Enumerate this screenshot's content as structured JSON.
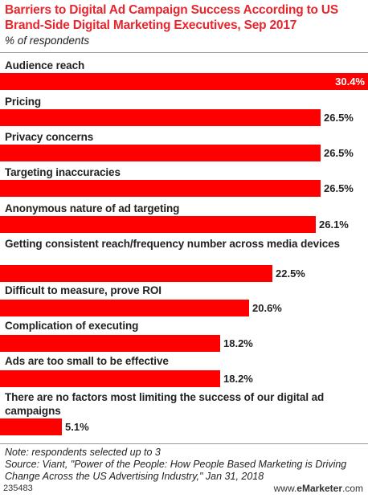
{
  "chart_data": {
    "type": "bar",
    "orientation": "horizontal",
    "title": "Barriers to Digital Ad Campaign Success According to US Brand-Side Digital Marketing Executives, Sep 2017",
    "subtitle": "% of respondents",
    "categories": [
      "Audience reach",
      "Pricing",
      "Privacy concerns",
      "Targeting inaccuracies",
      "Anonymous nature of ad targeting",
      "Getting consistent reach/frequency number across media devices",
      "Difficult to measure, prove ROI",
      "Complication of executing",
      "Ads are too small to be effective",
      "There are no factors most limiting the success of our digital ad campaigns"
    ],
    "values": [
      30.4,
      26.5,
      26.5,
      26.5,
      26.1,
      22.5,
      20.6,
      18.2,
      18.2,
      5.1
    ],
    "value_labels": [
      "30.4%",
      "26.5%",
      "26.5%",
      "26.5%",
      "26.1%",
      "22.5%",
      "20.6%",
      "18.2%",
      "18.2%",
      "5.1%"
    ],
    "colors": {
      "bar": "#ff0000",
      "title": "#e8262d"
    }
  },
  "footer": {
    "note": "Note: respondents selected up to 3",
    "source": "Source: Viant, \"Power of the People: How People Based Marketing is Driving Change Across the US Advertising Industry,\" Jan 31, 2018",
    "id": "235483",
    "brand_prefix": "www.",
    "brand_name": "eMarketer",
    "brand_suffix": ".com"
  }
}
